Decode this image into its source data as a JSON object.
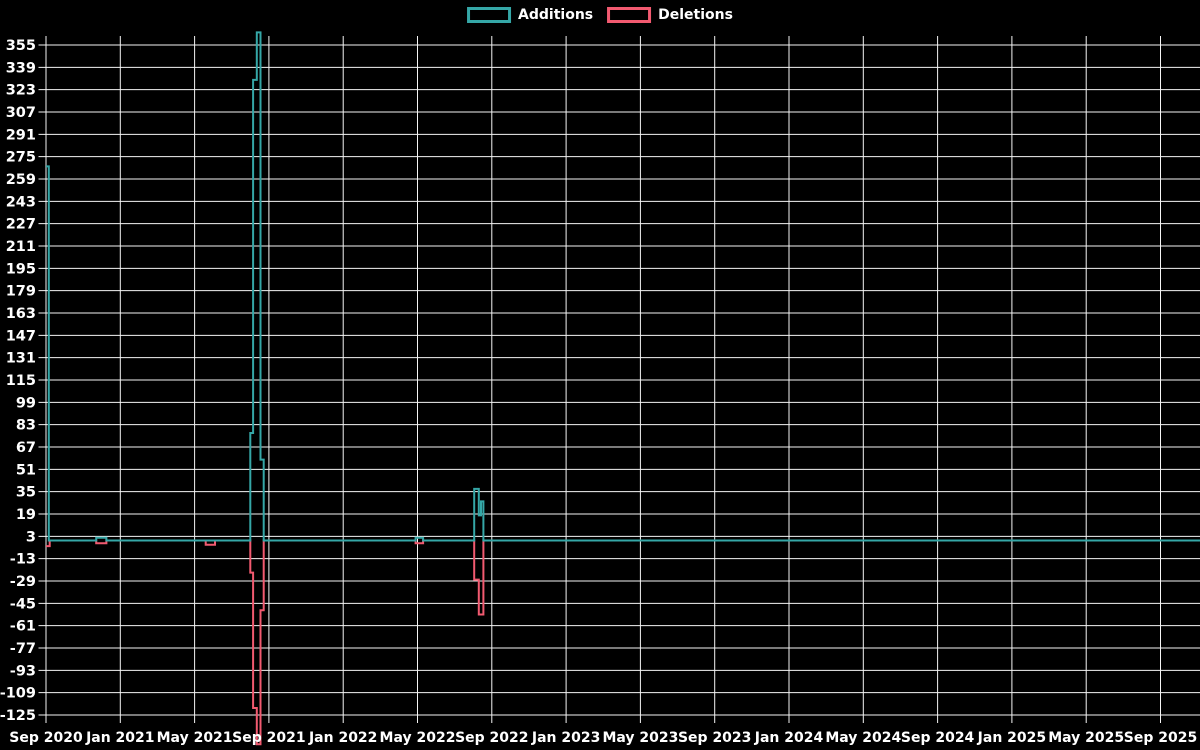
{
  "legend": {
    "items": [
      {
        "label": "Additions",
        "color": "#35A7A7"
      },
      {
        "label": "Deletions",
        "color": "#F25A70"
      }
    ]
  },
  "chart_data": {
    "type": "line",
    "line_style": "step-after",
    "title": "",
    "xlabel": "",
    "ylabel": "",
    "background": "#000000",
    "grid": true,
    "grid_color": "#F5F5F5",
    "text_color": "#FFFFFF",
    "x_unit": "months since Sep 2020",
    "xlim": [
      0,
      62.1
    ],
    "ylim": [
      -150,
      365
    ],
    "y_tick_step": 16,
    "y_ticks": [
      355,
      339,
      323,
      307,
      291,
      275,
      259,
      243,
      227,
      211,
      195,
      179,
      163,
      147,
      131,
      115,
      99,
      83,
      67,
      51,
      35,
      19,
      3,
      -13,
      -29,
      -45,
      -61,
      -77,
      -93,
      -109,
      -125
    ],
    "x_ticks": [
      {
        "label": "Sep 2020",
        "t": 0
      },
      {
        "label": "Jan 2021",
        "t": 4
      },
      {
        "label": "May 2021",
        "t": 8
      },
      {
        "label": "Sep 2021",
        "t": 12
      },
      {
        "label": "Jan 2022",
        "t": 16
      },
      {
        "label": "May 2022",
        "t": 20
      },
      {
        "label": "Sep 2022",
        "t": 24
      },
      {
        "label": "Jan 2023",
        "t": 28
      },
      {
        "label": "May 2023",
        "t": 32
      },
      {
        "label": "Sep 2023",
        "t": 36
      },
      {
        "label": "Jan 2024",
        "t": 40
      },
      {
        "label": "May 2024",
        "t": 44
      },
      {
        "label": "Sep 2024",
        "t": 48
      },
      {
        "label": "Jan 2025",
        "t": 52
      },
      {
        "label": "May 2025",
        "t": 56
      },
      {
        "label": "Sep 2025",
        "t": 60
      }
    ],
    "series": [
      {
        "name": "Additions",
        "color": "#35A7A7",
        "points": [
          [
            0,
            268
          ],
          [
            0.15,
            0
          ],
          [
            2.7,
            2
          ],
          [
            3.25,
            0
          ],
          [
            11.0,
            77
          ],
          [
            11.15,
            330
          ],
          [
            11.35,
            364
          ],
          [
            11.55,
            58
          ],
          [
            11.72,
            0
          ],
          [
            19.9,
            2
          ],
          [
            20.3,
            0
          ],
          [
            23.05,
            37
          ],
          [
            23.3,
            18
          ],
          [
            23.42,
            28
          ],
          [
            23.55,
            0
          ],
          [
            62.1,
            0
          ]
        ]
      },
      {
        "name": "Deletions",
        "color": "#F25A70",
        "points": [
          [
            0,
            -4
          ],
          [
            0.2,
            0
          ],
          [
            2.7,
            -2
          ],
          [
            3.25,
            0
          ],
          [
            8.6,
            -3
          ],
          [
            9.1,
            0
          ],
          [
            11.0,
            -23
          ],
          [
            11.15,
            -120
          ],
          [
            11.35,
            -146
          ],
          [
            11.55,
            -50
          ],
          [
            11.72,
            0
          ],
          [
            19.9,
            -2
          ],
          [
            20.3,
            0
          ],
          [
            23.05,
            -28
          ],
          [
            23.3,
            -53
          ],
          [
            23.55,
            0
          ],
          [
            62.1,
            0
          ]
        ]
      }
    ]
  }
}
